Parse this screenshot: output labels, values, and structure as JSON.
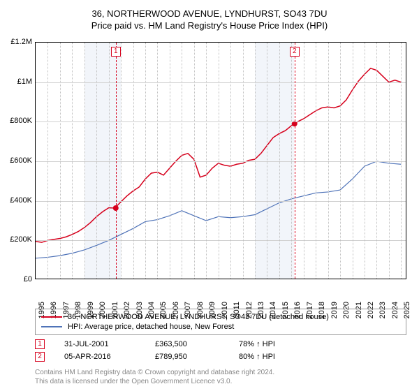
{
  "title": "36, NORTHERWOOD AVENUE, LYNDHURST, SO43 7DU",
  "subtitle": "Price paid vs. HM Land Registry's House Price Index (HPI)",
  "chart": {
    "type": "line",
    "background_color": "#ffffff",
    "grid_color": "#d0d0d0",
    "vgrid_color": "#c0c0c0",
    "x_years": [
      1995,
      1996,
      1997,
      1998,
      1999,
      2000,
      2001,
      2002,
      2003,
      2004,
      2005,
      2006,
      2007,
      2008,
      2009,
      2010,
      2011,
      2012,
      2013,
      2014,
      2015,
      2016,
      2017,
      2018,
      2019,
      2020,
      2021,
      2022,
      2023,
      2024,
      2025
    ],
    "xlim_year": [
      1995,
      2025.5
    ],
    "ylim": [
      0,
      1200000
    ],
    "ytick_step": 200000,
    "ytick_labels": [
      "£0",
      "£200K",
      "£400K",
      "£600K",
      "£800K",
      "£1M",
      "£1.2M"
    ],
    "label_fontsize": 11,
    "shade_ranges": [
      [
        1999.0,
        2002.0
      ],
      [
        2013.0,
        2016.2
      ]
    ],
    "series": [
      {
        "name": "property",
        "label": "36, NORTHERWOOD AVENUE, LYNDHURST, SO43 7DU (detached house)",
        "color": "#d6001c",
        "line_width": 1.5,
        "years": [
          1995,
          1995.5,
          1996,
          1996.5,
          1997,
          1997.5,
          1998,
          1998.5,
          1999,
          1999.5,
          2000,
          2000.5,
          2001,
          2001.5,
          2002,
          2002.5,
          2003,
          2003.5,
          2004,
          2004.5,
          2005,
          2005.5,
          2006,
          2006.5,
          2007,
          2007.5,
          2008,
          2008.5,
          2009,
          2009.5,
          2010,
          2010.5,
          2011,
          2011.5,
          2012,
          2012.5,
          2013,
          2013.5,
          2014,
          2014.5,
          2015,
          2015.5,
          2016,
          2016.25,
          2016.5,
          2017,
          2017.5,
          2018,
          2018.5,
          2019,
          2019.5,
          2020,
          2020.5,
          2021,
          2021.5,
          2022,
          2022.5,
          2023,
          2023.5,
          2024,
          2024.5,
          2025
        ],
        "values": [
          195000,
          190000,
          200000,
          205000,
          210000,
          218000,
          230000,
          245000,
          265000,
          290000,
          320000,
          345000,
          365000,
          363500,
          395000,
          425000,
          450000,
          470000,
          510000,
          540000,
          545000,
          530000,
          565000,
          600000,
          630000,
          640000,
          610000,
          520000,
          530000,
          565000,
          590000,
          580000,
          575000,
          585000,
          590000,
          605000,
          610000,
          640000,
          680000,
          720000,
          740000,
          755000,
          780000,
          789950,
          800000,
          815000,
          835000,
          855000,
          870000,
          875000,
          870000,
          880000,
          910000,
          960000,
          1005000,
          1040000,
          1070000,
          1060000,
          1030000,
          1000000,
          1010000,
          1000000
        ]
      },
      {
        "name": "hpi",
        "label": "HPI: Average price, detached house, New Forest",
        "color": "#4f73b8",
        "line_width": 1.2,
        "years": [
          1995,
          1996,
          1997,
          1998,
          1999,
          2000,
          2001,
          2002,
          2003,
          2004,
          2005,
          2006,
          2007,
          2008,
          2009,
          2010,
          2011,
          2012,
          2013,
          2014,
          2015,
          2016,
          2017,
          2018,
          2019,
          2020,
          2021,
          2022,
          2023,
          2024,
          2025
        ],
        "values": [
          110000,
          115000,
          123000,
          135000,
          152000,
          175000,
          200000,
          230000,
          260000,
          295000,
          305000,
          325000,
          350000,
          325000,
          300000,
          320000,
          315000,
          320000,
          330000,
          360000,
          390000,
          410000,
          425000,
          440000,
          445000,
          455000,
          510000,
          575000,
          600000,
          590000,
          585000
        ]
      }
    ],
    "sale_markers": [
      {
        "n": 1,
        "year": 2001.58,
        "value": 363500
      },
      {
        "n": 2,
        "year": 2016.26,
        "value": 789950
      }
    ],
    "marker_color": "#d6001c",
    "marker_radius": 4
  },
  "legend": {
    "items": [
      {
        "color": "#d6001c",
        "label": "36, NORTHERWOOD AVENUE, LYNDHURST, SO43 7DU (detached house)"
      },
      {
        "color": "#4f73b8",
        "label": "HPI: Average price, detached house, New Forest"
      }
    ]
  },
  "sales": [
    {
      "n": "1",
      "date": "31-JUL-2001",
      "price": "£363,500",
      "hpi": "78% ↑ HPI"
    },
    {
      "n": "2",
      "date": "05-APR-2016",
      "price": "£789,950",
      "hpi": "80% ↑ HPI"
    }
  ],
  "footer_line1": "Contains HM Land Registry data © Crown copyright and database right 2024.",
  "footer_line2": "This data is licensed under the Open Government Licence v3.0."
}
